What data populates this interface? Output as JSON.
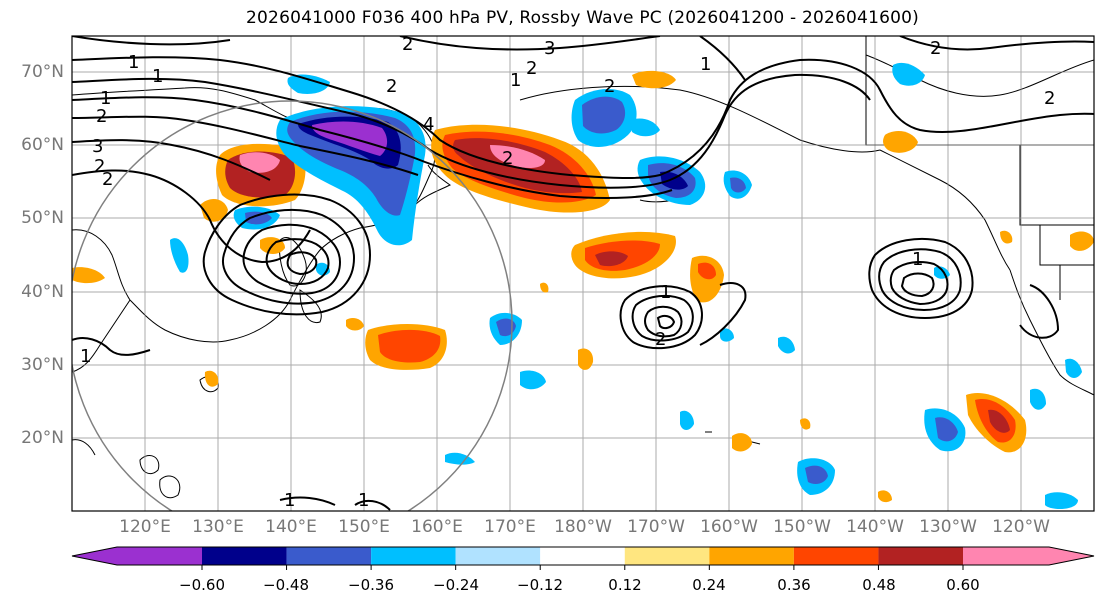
{
  "title": "2026041000 F036 400 hPa PV, Rossby Wave PC (2026041200 - 2026041600)",
  "lat_labels": [
    "70°N",
    "60°N",
    "50°N",
    "40°N",
    "30°N",
    "20°N"
  ],
  "lon_labels": [
    "120°E",
    "130°E",
    "140°E",
    "150°E",
    "160°E",
    "170°E",
    "180°W",
    "170°W",
    "160°W",
    "150°W",
    "140°W",
    "130°W",
    "120°W"
  ],
  "colorbar": {
    "ticks": [
      "−0.60",
      "−0.48",
      "−0.36",
      "−0.24",
      "−0.12",
      "0.12",
      "0.24",
      "0.36",
      "0.48",
      "0.60"
    ],
    "colors": [
      "#9b30d0",
      "#00008b",
      "#3a5bcc",
      "#00bfff",
      "#b0e2ff",
      "#ffffff",
      "#ffe680",
      "#ffa500",
      "#ff4500",
      "#b22222",
      "#ff85b0"
    ]
  },
  "contour_labels": [
    "1",
    "1",
    "1",
    "2",
    "2",
    "3",
    "2",
    "2",
    "1",
    "2",
    "3",
    "4",
    "2",
    "2",
    "1",
    "2",
    "2",
    "1",
    "2",
    "1",
    "1",
    "1",
    "1",
    "2"
  ],
  "chart_data": {
    "type": "map",
    "extent": {
      "lon": [
        110,
        250
      ],
      "lat": [
        10,
        75
      ]
    },
    "contour_levels": [
      1,
      2,
      3,
      4
    ],
    "shading_levels": [
      -0.6,
      -0.48,
      -0.36,
      -0.24,
      -0.12,
      0.12,
      0.24,
      0.36,
      0.48,
      0.6
    ]
  }
}
